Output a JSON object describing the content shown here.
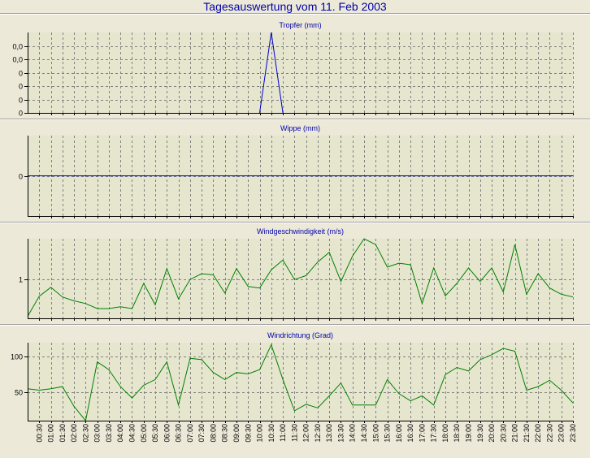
{
  "page": {
    "title": "Tagesauswertung vom 11. Feb 2003"
  },
  "colors": {
    "background": "#ece9d8",
    "plot_background": "#e6e6cf",
    "title": "#0000aa",
    "blue_series": "#0000cc",
    "green_series": "#008000",
    "grid": "#808080"
  },
  "x_labels": [
    "00:30",
    "01:00",
    "01:30",
    "02:00",
    "02:30",
    "03:00",
    "03:30",
    "04:00",
    "04:30",
    "05:00",
    "05:30",
    "06:00",
    "06:30",
    "07:00",
    "07:30",
    "08:00",
    "08:30",
    "09:00",
    "09:30",
    "10:00",
    "10:30",
    "11:00",
    "11:30",
    "12:00",
    "12:30",
    "13:00",
    "13:30",
    "14:00",
    "14:30",
    "15:00",
    "15:30",
    "16:00",
    "16:30",
    "17:00",
    "17:30",
    "18:00",
    "18:30",
    "19:00",
    "19:30",
    "20:00",
    "20:30",
    "21:00",
    "21:30",
    "22:00",
    "22:30",
    "23:00",
    "23:30"
  ],
  "chart_data": [
    {
      "type": "line",
      "title": "Tropfer (mm)",
      "ytick_labels": [
        "0,0",
        "0,0",
        "0",
        "0",
        "0",
        "0"
      ],
      "ytick_values": [
        0.05,
        0.04,
        0.03,
        0.02,
        0.01,
        0
      ],
      "ylim": [
        0,
        0.06
      ],
      "grid": true,
      "series": [
        {
          "color": "#0000cc",
          "x": [
            "10:00",
            "10:30",
            "11:00"
          ],
          "values": [
            0,
            0.06,
            0
          ]
        }
      ]
    },
    {
      "type": "line",
      "title": "Wippe (mm)",
      "ytick_labels": [
        "0"
      ],
      "ytick_values": [
        0
      ],
      "ylim": [
        -1,
        1
      ],
      "grid": true,
      "series": [
        {
          "color": "#0000cc",
          "x": [
            "00:00",
            "23:30"
          ],
          "values": [
            0,
            0
          ]
        }
      ]
    },
    {
      "type": "line",
      "title": "Windgeschwindigkeit (m/s)",
      "ytick_labels": [
        "1"
      ],
      "ytick_values": [
        1
      ],
      "ylim": [
        0,
        2.05
      ],
      "grid": true,
      "series": [
        {
          "color": "#008000",
          "x": [
            "00:00",
            "00:30",
            "01:00",
            "01:30",
            "02:00",
            "02:30",
            "03:00",
            "03:30",
            "04:00",
            "04:30",
            "05:00",
            "05:30",
            "06:00",
            "06:30",
            "07:00",
            "07:30",
            "08:00",
            "08:30",
            "09:00",
            "09:30",
            "10:00",
            "10:30",
            "11:00",
            "11:30",
            "12:00",
            "12:30",
            "13:00",
            "13:30",
            "14:00",
            "14:30",
            "15:00",
            "15:30",
            "16:00",
            "16:30",
            "17:00",
            "17:30",
            "18:00",
            "18:30",
            "19:00",
            "19:30",
            "20:00",
            "20:30",
            "21:00",
            "21:30",
            "22:00",
            "22:30",
            "23:00",
            "23:30"
          ],
          "values": [
            0.05,
            0.57,
            0.8,
            0.55,
            0.45,
            0.38,
            0.25,
            0.25,
            0.3,
            0.25,
            0.9,
            0.35,
            1.28,
            0.5,
            1.0,
            1.15,
            1.12,
            0.65,
            1.28,
            0.82,
            0.78,
            1.25,
            1.5,
            1.0,
            1.1,
            1.45,
            1.7,
            0.95,
            1.6,
            2.05,
            1.9,
            1.32,
            1.42,
            1.38,
            0.38,
            1.3,
            0.58,
            0.9,
            1.3,
            0.95,
            1.3,
            0.68,
            1.9,
            0.62,
            1.15,
            0.78,
            0.62,
            0.55
          ]
        }
      ]
    },
    {
      "type": "line",
      "title": "Windrichtung (Grad)",
      "ytick_labels": [
        "100",
        "50"
      ],
      "ytick_values": [
        100,
        50
      ],
      "ylim": [
        10,
        120
      ],
      "grid": true,
      "series": [
        {
          "color": "#008000",
          "x": [
            "00:00",
            "00:30",
            "01:00",
            "01:30",
            "02:00",
            "02:30",
            "03:00",
            "03:30",
            "04:00",
            "04:30",
            "05:00",
            "05:30",
            "06:00",
            "06:30",
            "07:00",
            "07:30",
            "08:00",
            "08:30",
            "09:00",
            "09:30",
            "10:00",
            "10:30",
            "11:00",
            "11:30",
            "12:00",
            "12:30",
            "13:00",
            "13:30",
            "14:00",
            "14:30",
            "15:00",
            "15:30",
            "16:00",
            "16:30",
            "17:00",
            "17:30",
            "18:00",
            "18:30",
            "19:00",
            "19:30",
            "20:00",
            "20:30",
            "21:00",
            "21:30",
            "22:00",
            "22:30",
            "23:00",
            "23:30"
          ],
          "values": [
            55,
            53,
            55,
            58,
            30,
            10,
            93,
            82,
            58,
            42,
            60,
            68,
            93,
            32,
            98,
            96,
            78,
            68,
            78,
            76,
            82,
            117,
            68,
            24,
            33,
            28,
            45,
            63,
            32,
            32,
            32,
            68,
            48,
            38,
            45,
            32,
            75,
            85,
            80,
            96,
            103,
            112,
            108,
            53,
            58,
            67,
            53,
            35
          ]
        }
      ]
    }
  ]
}
